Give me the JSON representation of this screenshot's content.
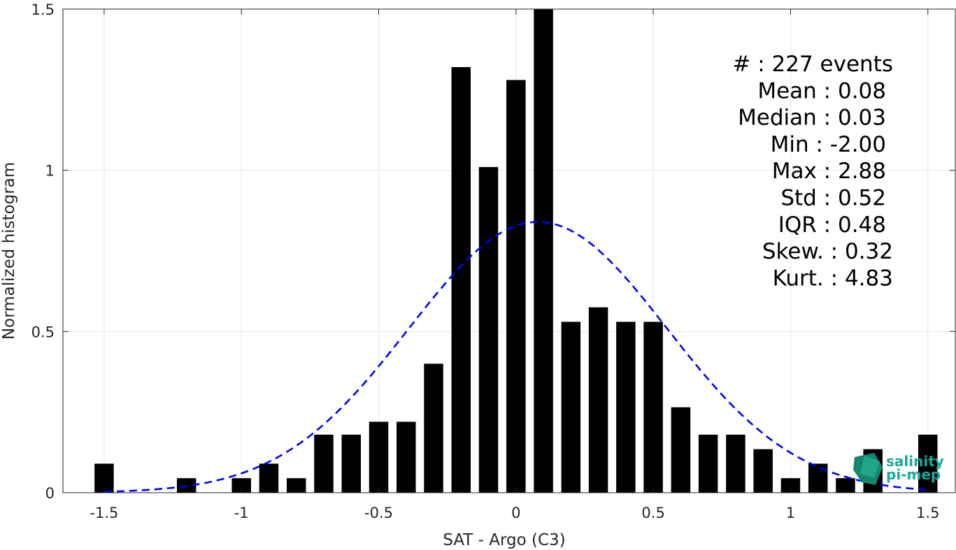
{
  "chart_data": {
    "type": "bar",
    "xlabel": "SAT - Argo (C3)",
    "ylabel": "Normalized histogram",
    "xlim": [
      -1.65,
      1.6
    ],
    "ylim": [
      0,
      1.5
    ],
    "x_ticks": [
      -1.5,
      -1,
      -0.5,
      0,
      0.5,
      1,
      1.5
    ],
    "x_tick_labels": [
      "-1.5",
      "-1",
      "-0.5",
      "0",
      "0.5",
      "1",
      "1.5"
    ],
    "y_ticks": [
      0,
      0.5,
      1,
      1.5
    ],
    "y_tick_labels": [
      "0",
      "0.5",
      "1",
      "1.5"
    ],
    "grid": true,
    "bar_color": "#000000",
    "bin_width": 0.1,
    "bars": [
      {
        "x": -1.5,
        "y": 0.09
      },
      {
        "x": -1.2,
        "y": 0.045
      },
      {
        "x": -1.0,
        "y": 0.045
      },
      {
        "x": -0.9,
        "y": 0.09
      },
      {
        "x": -0.8,
        "y": 0.045
      },
      {
        "x": -0.7,
        "y": 0.18
      },
      {
        "x": -0.6,
        "y": 0.18
      },
      {
        "x": -0.5,
        "y": 0.22
      },
      {
        "x": -0.4,
        "y": 0.22
      },
      {
        "x": -0.3,
        "y": 0.4
      },
      {
        "x": -0.2,
        "y": 1.32
      },
      {
        "x": -0.1,
        "y": 1.01
      },
      {
        "x": 0.0,
        "y": 1.28
      },
      {
        "x": 0.1,
        "y": 1.5
      },
      {
        "x": 0.2,
        "y": 0.53
      },
      {
        "x": 0.3,
        "y": 0.575
      },
      {
        "x": 0.4,
        "y": 0.53
      },
      {
        "x": 0.5,
        "y": 0.53
      },
      {
        "x": 0.6,
        "y": 0.265
      },
      {
        "x": 0.7,
        "y": 0.18
      },
      {
        "x": 0.8,
        "y": 0.18
      },
      {
        "x": 0.9,
        "y": 0.135
      },
      {
        "x": 1.0,
        "y": 0.045
      },
      {
        "x": 1.1,
        "y": 0.09
      },
      {
        "x": 1.2,
        "y": 0.045
      },
      {
        "x": 1.3,
        "y": 0.135
      },
      {
        "x": 1.5,
        "y": 0.18
      }
    ],
    "fit_curve": {
      "style": "dashed",
      "color": "#0000ff",
      "mean": 0.08,
      "std": 0.47,
      "x_range": [
        -1.5,
        1.5
      ]
    },
    "stats": [
      {
        "label": "#  : 227 events",
        "align": "end-wide"
      },
      {
        "label": "Mean : 0.08",
        "align": "end"
      },
      {
        "label": "Median : 0.03",
        "align": "end"
      },
      {
        "label": "Min : -2.00",
        "align": "end"
      },
      {
        "label": "Max : 2.88",
        "align": "end"
      },
      {
        "label": "Std : 0.52",
        "align": "end"
      },
      {
        "label": "IQR : 0.48",
        "align": "end"
      },
      {
        "label": "Skew. : 0.32",
        "align": "end-wide"
      },
      {
        "label": "Kurt. : 4.83",
        "align": "end-wide"
      }
    ],
    "logo": {
      "line1": "salinity",
      "line2": "pi-mep",
      "color": "#1aa89a"
    }
  }
}
